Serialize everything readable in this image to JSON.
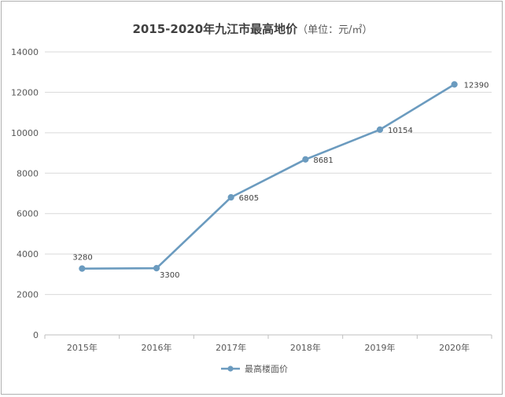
{
  "chart_data": {
    "type": "line",
    "title": "2015-2020年九江市最高地价",
    "title_unit": "（单位：元/㎡）",
    "categories": [
      "2015年",
      "2016年",
      "2017年",
      "2018年",
      "2019年",
      "2020年"
    ],
    "series": [
      {
        "name": "最高楼面价",
        "values": [
          3280,
          3300,
          6805,
          8681,
          10154,
          12390
        ],
        "color": "#6b9bbf"
      }
    ],
    "data_labels": [
      "3280",
      "3300",
      "6805",
      "8681",
      "10154",
      "12390"
    ],
    "ylim": [
      0,
      14000
    ],
    "yticks": [
      0,
      2000,
      4000,
      6000,
      8000,
      10000,
      12000,
      14000
    ],
    "ytick_labels": [
      "0",
      "2000",
      "4000",
      "6000",
      "8000",
      "10000",
      "12000",
      "14000"
    ],
    "grid": true,
    "legend_position": "bottom"
  }
}
